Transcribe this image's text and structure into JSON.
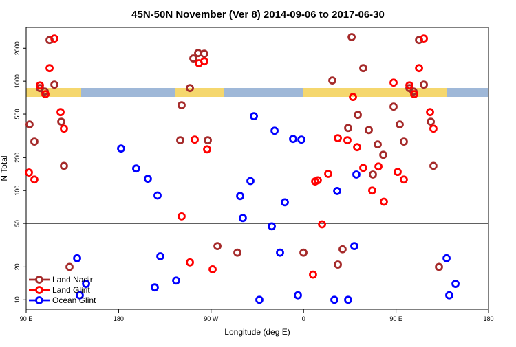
{
  "chart_data": {
    "type": "scatter",
    "title": "45N-50N November (Ver 8)   2014-09-06 to 2017-06-30",
    "x_label": "Longitude (deg E)",
    "y_label": "N Total",
    "xlim": [
      90,
      540
    ],
    "xticks": [
      {
        "value": 90,
        "label": "90 E"
      },
      180,
      {
        "value": 270,
        "label": "90 W"
      },
      {
        "value": 360,
        "label": "0"
      },
      {
        "value": 450,
        "label": "90 E"
      },
      {
        "value": 540,
        "label": "180"
      }
    ],
    "ylim": [
      8.2,
      3100
    ],
    "yscale": "log",
    "yticks": [
      10,
      20,
      50,
      100,
      200,
      500,
      1000,
      2000
    ],
    "reference_line": 50,
    "legend": "bottom-left",
    "series": [
      {
        "name": "Land Nadir",
        "color": "#a52a2a",
        "x": [
          93.3,
          98.0,
          103.4,
          108.1,
          112.8,
          117.5,
          124.2,
          126.8,
          132.2,
          241.3,
          240.0,
          249.4,
          252.7,
          257.4,
          263.4,
          266.8,
          276.2,
          295.6,
          359.9,
          388.0,
          393.4,
          398.0,
          403.4,
          406.8,
          412.8,
          418.1,
          423.5,
          427.5,
          432.2,
          437.6,
          447.6,
          453.6,
          457.6,
          463.0,
          467.0,
          472.4,
          477.1,
          483.8,
          486.4,
          491.8
        ],
        "values": [
          402,
          280,
          865,
          805,
          2380,
          930,
          426,
          168,
          20,
          603,
          288,
          865,
          1615,
          1810,
          1785,
          288,
          31,
          27,
          27,
          1015,
          21,
          29,
          373,
          2530,
          492,
          1316,
          357,
          140,
          264,
          212,
          585,
          402,
          280,
          865,
          805,
          2380,
          930,
          426,
          168,
          20
        ]
      },
      {
        "name": "Land Glint",
        "color": "#ff0000",
        "x": [
          92.7,
          98.0,
          103.4,
          108.8,
          112.8,
          117.5,
          123.5,
          126.8,
          241.3,
          254.1,
          263.4,
          258.1,
          266.1,
          249.4,
          271.5,
          371.3,
          373.9,
          378.0,
          384.0,
          393.4,
          402.7,
          408.1,
          412.1,
          418.1,
          426.8,
          432.9,
          438.2,
          447.6,
          451.6,
          457.6,
          369.2,
          463.0,
          467.7,
          472.4,
          477.1,
          483.1,
          486.4
        ],
        "values": [
          146,
          126,
          916,
          760,
          1316,
          2455,
          521,
          368,
          58,
          292,
          1520,
          1460,
          238,
          22,
          19,
          121,
          124,
          49,
          142,
          301,
          288,
          717,
          249,
          161,
          100,
          166,
          79,
          970,
          148,
          126,
          17,
          916,
          760,
          1316,
          2455,
          521,
          368
        ]
      },
      {
        "name": "Ocean Glint",
        "color": "#0000ff",
        "x": [
          139.6,
          142.2,
          148.3,
          182.4,
          197.1,
          208.5,
          217.9,
          215.2,
          220.6,
          236.0,
          298.3,
          300.9,
          308.3,
          311.7,
          317.0,
          329.1,
          331.8,
          337.1,
          341.8,
          349.8,
          354.5,
          357.9,
          390.0,
          392.7,
          403.4,
          409.4,
          411.4,
          499.2,
          501.8,
          507.9
        ],
        "values": [
          24,
          11,
          14,
          242,
          159,
          128,
          90,
          13,
          25,
          15,
          89,
          56,
          122,
          478,
          10,
          47,
          352,
          27,
          78,
          296,
          11,
          292,
          10,
          99,
          10,
          31,
          140,
          24,
          11,
          14
        ]
      }
    ]
  }
}
